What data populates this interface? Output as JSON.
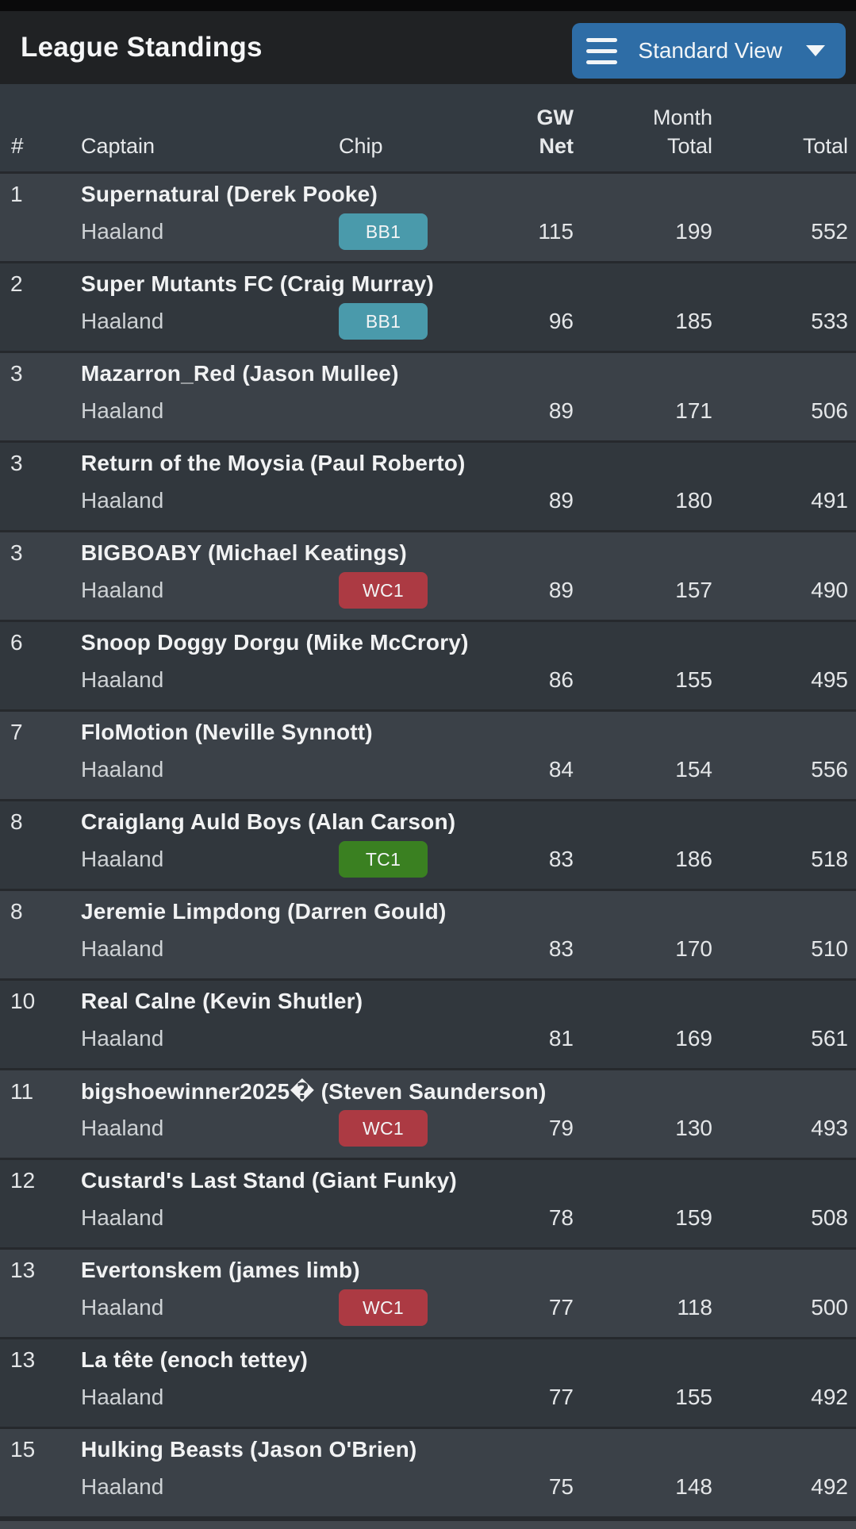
{
  "header": {
    "title": "League Standings",
    "view_button": {
      "label": "Standard View",
      "icon": "hamburger-menu-icon",
      "caret": "caret-down-icon"
    }
  },
  "table": {
    "columns": [
      {
        "key": "rank",
        "label": "#"
      },
      {
        "key": "captain",
        "label": "Captain"
      },
      {
        "key": "chip",
        "label": "Chip"
      },
      {
        "key": "gw_net",
        "label": "GW Net",
        "lines": [
          "GW",
          "Net"
        ],
        "sorted": true
      },
      {
        "key": "month_total",
        "label": "Month Total",
        "lines": [
          "Month",
          "Total"
        ]
      },
      {
        "key": "total",
        "label": "Total"
      }
    ],
    "chip_colors": {
      "BB1": "#4a9aab",
      "WC1": "#ac3a43",
      "TC1": "#3a8021"
    },
    "rows": [
      {
        "rank": "1",
        "team": "Supernatural (Derek Pooke)",
        "captain": "Haaland",
        "chip": "BB1",
        "gw_net": "115",
        "month_total": "199",
        "total": "552"
      },
      {
        "rank": "2",
        "team": "Super Mutants FC (Craig Murray)",
        "captain": "Haaland",
        "chip": "BB1",
        "gw_net": "96",
        "month_total": "185",
        "total": "533"
      },
      {
        "rank": "3",
        "team": "Mazarron_Red (Jason Mullee)",
        "captain": "Haaland",
        "chip": null,
        "gw_net": "89",
        "month_total": "171",
        "total": "506"
      },
      {
        "rank": "3",
        "team": "Return of the Moysia (Paul Roberto)",
        "captain": "Haaland",
        "chip": null,
        "gw_net": "89",
        "month_total": "180",
        "total": "491"
      },
      {
        "rank": "3",
        "team": "BIGBOABY (Michael Keatings)",
        "captain": "Haaland",
        "chip": "WC1",
        "gw_net": "89",
        "month_total": "157",
        "total": "490"
      },
      {
        "rank": "6",
        "team": "Snoop Doggy Dorgu (Mike McCrory)",
        "captain": "Haaland",
        "chip": null,
        "gw_net": "86",
        "month_total": "155",
        "total": "495"
      },
      {
        "rank": "7",
        "team": "FloMotion (Neville Synnott)",
        "captain": "Haaland",
        "chip": null,
        "gw_net": "84",
        "month_total": "154",
        "total": "556"
      },
      {
        "rank": "8",
        "team": "Craiglang Auld Boys (Alan Carson)",
        "captain": "Haaland",
        "chip": "TC1",
        "gw_net": "83",
        "month_total": "186",
        "total": "518"
      },
      {
        "rank": "8",
        "team": "Jeremie Limpdong (Darren Gould)",
        "captain": "Haaland",
        "chip": null,
        "gw_net": "83",
        "month_total": "170",
        "total": "510"
      },
      {
        "rank": "10",
        "team": "Real Calne (Kevin Shutler)",
        "captain": "Haaland",
        "chip": null,
        "gw_net": "81",
        "month_total": "169",
        "total": "561"
      },
      {
        "rank": "11",
        "team": "bigshoewinner2025� (Steven Saunderson)",
        "captain": "Haaland",
        "chip": "WC1",
        "gw_net": "79",
        "month_total": "130",
        "total": "493"
      },
      {
        "rank": "12",
        "team": "Custard's Last Stand (Giant Funky)",
        "captain": "Haaland",
        "chip": null,
        "gw_net": "78",
        "month_total": "159",
        "total": "508"
      },
      {
        "rank": "13",
        "team": "Evertonskem (james limb)",
        "captain": "Haaland",
        "chip": "WC1",
        "gw_net": "77",
        "month_total": "118",
        "total": "500"
      },
      {
        "rank": "13",
        "team": "La tête (enoch tettey)",
        "captain": "Haaland",
        "chip": null,
        "gw_net": "77",
        "month_total": "155",
        "total": "492"
      },
      {
        "rank": "15",
        "team": "Hulking Beasts (Jason O'Brien)",
        "captain": "Haaland",
        "chip": null,
        "gw_net": "75",
        "month_total": "148",
        "total": "492"
      }
    ]
  },
  "colors": {
    "accent_blue": "#2e6da6",
    "top_bar": "#0a0a0b",
    "title_bar": "#202224",
    "table_header": "#333a41",
    "row_odd": "#3b4148",
    "row_even": "#31373d",
    "separator": "#26292d",
    "next_row_sliver": "#42474d"
  }
}
